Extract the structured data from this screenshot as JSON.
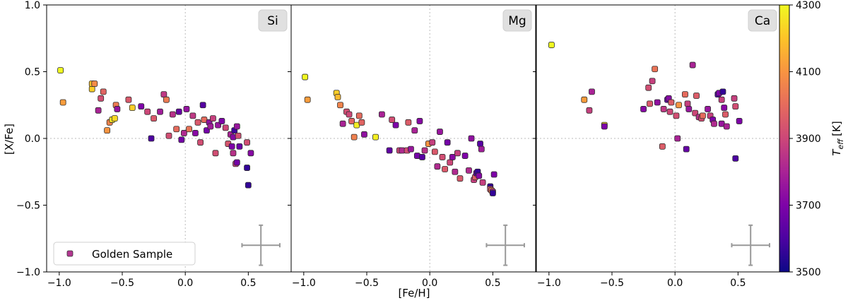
{
  "chart_data": {
    "type": "scatter",
    "xlabel": "[Fe/H]",
    "ylabel": "[X/Fe]",
    "xlim": [
      -1.1,
      0.84
    ],
    "ylim": [
      -1.0,
      1.0
    ],
    "xticks": [
      -1.0,
      -0.5,
      0.0,
      0.5
    ],
    "xtick_labels": [
      "−1.0",
      "−0.5",
      "0.0",
      "0.5"
    ],
    "yticks": [
      -1.0,
      -0.5,
      0.0,
      0.5,
      1.0
    ],
    "ytick_labels": [
      "−1.0",
      "−0.5",
      "0.0",
      "0.5",
      "1.0"
    ],
    "reference_lines": {
      "x": 0.0,
      "y": 0.0,
      "style": "dotted"
    },
    "legend": {
      "label": "Golden Sample",
      "placement": "lower-left"
    },
    "error_bar": {
      "x": 0.6,
      "y": -0.8,
      "xerr": 0.15,
      "yerr": 0.15
    },
    "colorbar": {
      "label": "T_eff [K]",
      "label_main": "T",
      "label_sub": "eff",
      "label_unit": "[K]",
      "range": [
        3500,
        4300
      ],
      "ticks": [
        3500,
        3700,
        3900,
        4100,
        4300
      ],
      "tick_labels": [
        "3500",
        "3700",
        "3900",
        "4100",
        "4300"
      ],
      "colormap": "plasma"
    },
    "panels": [
      {
        "element": "Si",
        "points": [
          [
            -0.99,
            0.51,
            4300
          ],
          [
            -0.97,
            0.27,
            4120
          ],
          [
            -0.74,
            0.37,
            4220
          ],
          [
            -0.74,
            0.41,
            4200
          ],
          [
            -0.72,
            0.41,
            4080
          ],
          [
            -0.69,
            0.21,
            3800
          ],
          [
            -0.67,
            0.3,
            3920
          ],
          [
            -0.65,
            0.35,
            3980
          ],
          [
            -0.62,
            0.06,
            4100
          ],
          [
            -0.6,
            0.12,
            4060
          ],
          [
            -0.58,
            0.14,
            4260
          ],
          [
            -0.56,
            0.15,
            4240
          ],
          [
            -0.55,
            0.25,
            4040
          ],
          [
            -0.54,
            0.22,
            3750
          ],
          [
            -0.45,
            0.29,
            3950
          ],
          [
            -0.42,
            0.23,
            4220
          ],
          [
            -0.35,
            0.24,
            3700
          ],
          [
            -0.3,
            0.2,
            3900
          ],
          [
            -0.27,
            0.0,
            3600
          ],
          [
            -0.25,
            0.15,
            3950
          ],
          [
            -0.2,
            0.2,
            3780
          ],
          [
            -0.17,
            0.33,
            3860
          ],
          [
            -0.15,
            0.29,
            4040
          ],
          [
            -0.13,
            0.02,
            3920
          ],
          [
            -0.1,
            0.18,
            3840
          ],
          [
            -0.07,
            0.07,
            4000
          ],
          [
            -0.05,
            0.2,
            3650
          ],
          [
            -0.03,
            -0.01,
            3680
          ],
          [
            -0.01,
            0.04,
            3820
          ],
          [
            0.01,
            0.22,
            3750
          ],
          [
            0.03,
            0.07,
            4020
          ],
          [
            0.06,
            0.17,
            3860
          ],
          [
            0.08,
            0.04,
            3720
          ],
          [
            0.1,
            0.12,
            3950
          ],
          [
            0.12,
            -0.03,
            3920
          ],
          [
            0.14,
            0.25,
            3620
          ],
          [
            0.15,
            0.14,
            4000
          ],
          [
            0.17,
            0.06,
            3680
          ],
          [
            0.19,
            0.12,
            3740
          ],
          [
            0.2,
            0.09,
            3780
          ],
          [
            0.22,
            0.15,
            3880
          ],
          [
            0.24,
            -0.11,
            3920
          ],
          [
            0.26,
            0.1,
            3760
          ],
          [
            0.29,
            0.13,
            3700
          ],
          [
            0.32,
            0.08,
            3900
          ],
          [
            0.34,
            -0.04,
            3940
          ],
          [
            0.36,
            0.03,
            3800
          ],
          [
            0.37,
            -0.06,
            3700
          ],
          [
            0.38,
            -0.11,
            3840
          ],
          [
            0.38,
            0.01,
            3720
          ],
          [
            0.39,
            0.06,
            3580
          ],
          [
            0.4,
            -0.19,
            3880
          ],
          [
            0.41,
            -0.18,
            3680
          ],
          [
            0.41,
            0.09,
            3760
          ],
          [
            0.42,
            0.02,
            3920
          ],
          [
            0.43,
            -0.06,
            3660
          ],
          [
            0.49,
            -0.03,
            3920
          ],
          [
            0.49,
            -0.22,
            3560
          ],
          [
            0.5,
            -0.35,
            3560
          ],
          [
            0.52,
            -0.11,
            3720
          ]
        ]
      },
      {
        "element": "Mg",
        "points": [
          [
            -0.99,
            0.46,
            4300
          ],
          [
            -0.97,
            0.29,
            4120
          ],
          [
            -0.74,
            0.34,
            4220
          ],
          [
            -0.73,
            0.31,
            4180
          ],
          [
            -0.71,
            0.25,
            4060
          ],
          [
            -0.69,
            0.11,
            3800
          ],
          [
            -0.66,
            0.2,
            3920
          ],
          [
            -0.64,
            0.18,
            3900
          ],
          [
            -0.62,
            0.13,
            3980
          ],
          [
            -0.6,
            0.01,
            4050
          ],
          [
            -0.58,
            0.1,
            4280
          ],
          [
            -0.56,
            0.17,
            4000
          ],
          [
            -0.54,
            0.12,
            3980
          ],
          [
            -0.52,
            0.03,
            3740
          ],
          [
            -0.43,
            0.01,
            4280
          ],
          [
            -0.38,
            0.18,
            3800
          ],
          [
            -0.32,
            -0.09,
            3640
          ],
          [
            -0.3,
            0.14,
            3920
          ],
          [
            -0.27,
            0.1,
            3700
          ],
          [
            -0.24,
            -0.09,
            3900
          ],
          [
            -0.22,
            -0.09,
            3820
          ],
          [
            -0.18,
            -0.09,
            3920
          ],
          [
            -0.17,
            0.12,
            3960
          ],
          [
            -0.15,
            -0.08,
            3760
          ],
          [
            -0.12,
            0.06,
            3800
          ],
          [
            -0.1,
            -0.13,
            3680
          ],
          [
            -0.08,
            0.13,
            3720
          ],
          [
            -0.06,
            -0.14,
            3620
          ],
          [
            -0.04,
            -0.09,
            3840
          ],
          [
            -0.01,
            -0.04,
            4100
          ],
          [
            0.02,
            -0.03,
            3880
          ],
          [
            0.04,
            -0.1,
            3950
          ],
          [
            0.06,
            -0.21,
            3820
          ],
          [
            0.08,
            0.05,
            3760
          ],
          [
            0.1,
            -0.14,
            3920
          ],
          [
            0.12,
            -0.23,
            3950
          ],
          [
            0.14,
            -0.03,
            3680
          ],
          [
            0.16,
            -0.18,
            3900
          ],
          [
            0.18,
            -0.14,
            3720
          ],
          [
            0.2,
            -0.25,
            3820
          ],
          [
            0.22,
            -0.11,
            3880
          ],
          [
            0.24,
            -0.3,
            3950
          ],
          [
            0.28,
            -0.13,
            3700
          ],
          [
            0.31,
            -0.24,
            3820
          ],
          [
            0.33,
            0.0,
            3740
          ],
          [
            0.35,
            -0.31,
            3880
          ],
          [
            0.36,
            -0.29,
            3960
          ],
          [
            0.37,
            -0.26,
            3650
          ],
          [
            0.38,
            -0.25,
            3560
          ],
          [
            0.39,
            -0.28,
            3720
          ],
          [
            0.4,
            -0.04,
            3620
          ],
          [
            0.41,
            -0.08,
            3780
          ],
          [
            0.42,
            -0.33,
            3880
          ],
          [
            0.48,
            -0.36,
            3560
          ],
          [
            0.48,
            -0.38,
            3940
          ],
          [
            0.49,
            -0.39,
            4020
          ],
          [
            0.5,
            -0.4,
            3800
          ],
          [
            0.51,
            -0.27,
            3700
          ],
          [
            0.5,
            -0.41,
            3560
          ]
        ]
      },
      {
        "element": "Ca",
        "points": [
          [
            -0.98,
            0.7,
            4300
          ],
          [
            -0.72,
            0.29,
            4120
          ],
          [
            -0.68,
            0.21,
            3880
          ],
          [
            -0.66,
            0.35,
            3800
          ],
          [
            -0.56,
            0.1,
            4250
          ],
          [
            -0.56,
            0.09,
            3700
          ],
          [
            -0.25,
            0.22,
            3720
          ],
          [
            -0.21,
            0.38,
            3920
          ],
          [
            -0.2,
            0.26,
            3950
          ],
          [
            -0.18,
            0.43,
            3880
          ],
          [
            -0.16,
            0.52,
            4020
          ],
          [
            -0.14,
            0.27,
            3740
          ],
          [
            -0.1,
            -0.06,
            3960
          ],
          [
            -0.09,
            0.22,
            3860
          ],
          [
            -0.06,
            0.29,
            3640
          ],
          [
            -0.05,
            0.3,
            3720
          ],
          [
            -0.04,
            0.2,
            3900
          ],
          [
            -0.03,
            0.27,
            3960
          ],
          [
            0.01,
            0.17,
            3920
          ],
          [
            0.02,
            0.0,
            3800
          ],
          [
            0.03,
            0.25,
            4100
          ],
          [
            0.08,
            0.33,
            4000
          ],
          [
            0.09,
            -0.08,
            3650
          ],
          [
            0.1,
            0.26,
            3880
          ],
          [
            0.11,
            0.22,
            3760
          ],
          [
            0.14,
            0.55,
            3800
          ],
          [
            0.16,
            0.19,
            3900
          ],
          [
            0.17,
            0.32,
            3960
          ],
          [
            0.19,
            0.16,
            3840
          ],
          [
            0.21,
            0.15,
            3920
          ],
          [
            0.22,
            0.17,
            4000
          ],
          [
            0.26,
            0.22,
            3760
          ],
          [
            0.28,
            0.17,
            3880
          ],
          [
            0.3,
            0.14,
            3700
          ],
          [
            0.31,
            0.11,
            3820
          ],
          [
            0.34,
            0.33,
            3600
          ],
          [
            0.35,
            0.34,
            3700
          ],
          [
            0.37,
            0.29,
            3880
          ],
          [
            0.37,
            0.11,
            3760
          ],
          [
            0.38,
            0.35,
            3560
          ],
          [
            0.39,
            0.23,
            3720
          ],
          [
            0.4,
            0.18,
            3960
          ],
          [
            0.41,
            0.09,
            3800
          ],
          [
            0.47,
            0.3,
            3880
          ],
          [
            0.48,
            0.24,
            3920
          ],
          [
            0.48,
            -0.15,
            3600
          ],
          [
            0.51,
            0.13,
            3700
          ]
        ]
      }
    ]
  }
}
